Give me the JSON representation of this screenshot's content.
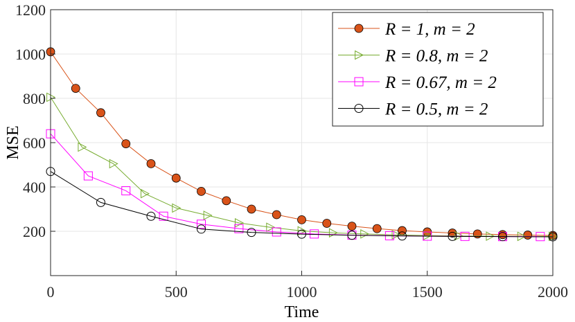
{
  "chart_data": {
    "type": "line",
    "xlabel": "Time",
    "ylabel": "MSE",
    "xlim": [
      0,
      2000
    ],
    "ylim": [
      0,
      1200
    ],
    "xticks": [
      0,
      500,
      1000,
      1500,
      2000
    ],
    "yticks": [
      200,
      400,
      600,
      800,
      1000,
      1200
    ],
    "grid": true,
    "legend_position": "top-right",
    "series": [
      {
        "name": "R = 1, m = 2",
        "color": "#d95319",
        "line_color": "#d95319",
        "marker": "filled-circle",
        "x": [
          0,
          100,
          200,
          300,
          400,
          500,
          600,
          700,
          800,
          900,
          1000,
          1100,
          1200,
          1300,
          1400,
          1500,
          1600,
          1700,
          1800,
          1900,
          2000
        ],
        "y": [
          1010,
          845,
          735,
          595,
          505,
          440,
          380,
          338,
          300,
          275,
          252,
          236,
          223,
          212,
          203,
          197,
          192,
          188,
          185,
          183,
          181
        ]
      },
      {
        "name": "R = 0.8, m = 2",
        "color": "#77ac30",
        "line_color": "#77ac30",
        "marker": "triangle-right",
        "x": [
          0,
          125,
          250,
          375,
          500,
          625,
          750,
          875,
          1000,
          1125,
          1250,
          1375,
          1500,
          1625,
          1750,
          1875,
          2000
        ],
        "y": [
          805,
          580,
          505,
          370,
          305,
          272,
          238,
          218,
          202,
          193,
          188,
          184,
          181,
          179,
          178,
          177,
          177
        ]
      },
      {
        "name": "R = 0.67, m = 2",
        "color": "#ff00ff",
        "line_color": "#ff00ff",
        "marker": "open-square",
        "x": [
          0,
          150,
          300,
          450,
          600,
          750,
          900,
          1050,
          1200,
          1350,
          1500,
          1650,
          1800,
          1950
        ],
        "y": [
          640,
          450,
          383,
          268,
          232,
          212,
          197,
          188,
          183,
          180,
          178,
          177,
          176,
          176
        ]
      },
      {
        "name": "R = 0.5, m = 2",
        "color": "#000000",
        "line_color": "#000000",
        "marker": "open-circle",
        "x": [
          0,
          200,
          400,
          600,
          800,
          1000,
          1200,
          1400,
          1600,
          1800,
          2000
        ],
        "y": [
          470,
          330,
          268,
          210,
          195,
          187,
          182,
          179,
          177,
          176,
          175
        ]
      }
    ]
  }
}
